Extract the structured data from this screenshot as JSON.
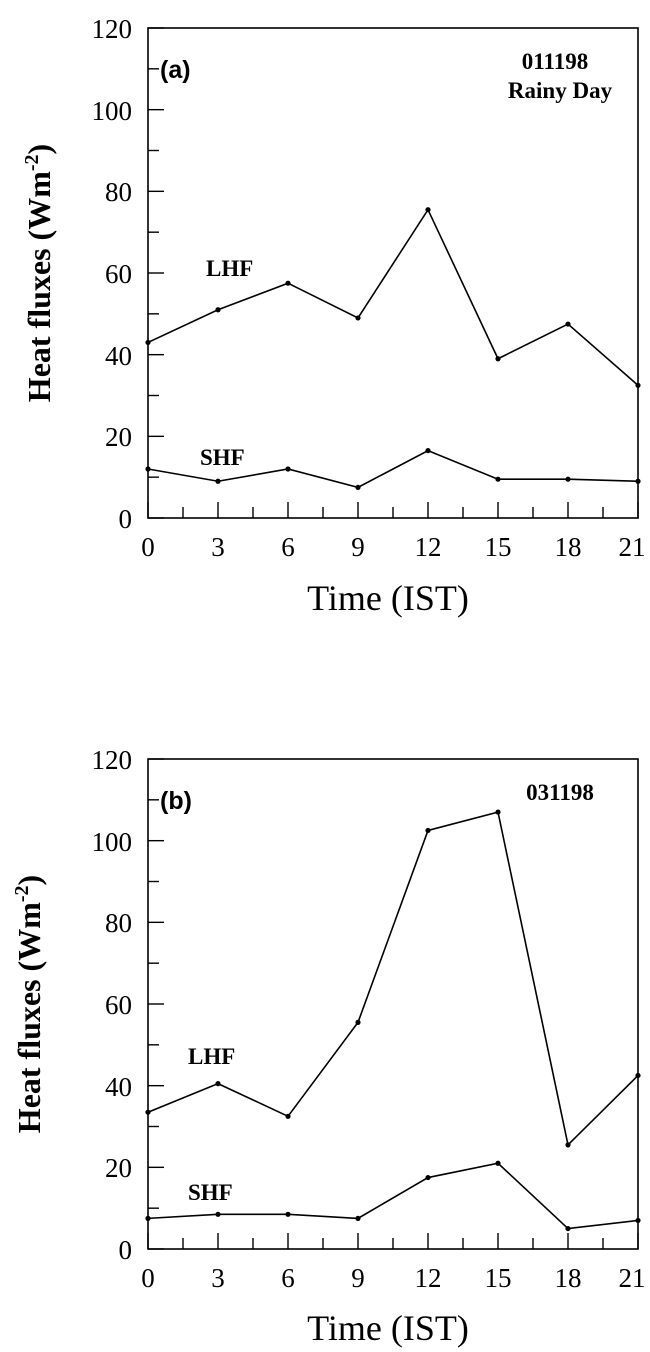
{
  "chart_data": [
    {
      "type": "line",
      "panel_label": "(a)",
      "annotation": [
        "011198",
        "Rainy Day"
      ],
      "xlabel": "Time (IST)",
      "ylabel": "Heat fluxes (Wm-2)",
      "ylabel_main": "Heat fluxes (Wm",
      "ylabel_exp": "-2",
      "ylabel_close": ")",
      "x": [
        0,
        3,
        6,
        9,
        12,
        15,
        18,
        21
      ],
      "xlim": [
        0,
        21
      ],
      "ylim": [
        0,
        120
      ],
      "xticks": [
        "0",
        "3",
        "6",
        "9",
        "12",
        "15",
        "18",
        "21"
      ],
      "yticks": [
        "0",
        "20",
        "40",
        "60",
        "80",
        "100",
        "120"
      ],
      "series": [
        {
          "name": "LHF",
          "values": [
            43,
            51,
            57.5,
            49,
            75.5,
            39,
            47.5,
            32.5
          ]
        },
        {
          "name": "SHF",
          "values": [
            12,
            9,
            12,
            7.5,
            16.5,
            9.5,
            9.5,
            9
          ]
        }
      ],
      "grid": false,
      "legend": "none"
    },
    {
      "type": "line",
      "panel_label": "(b)",
      "annotation": [
        "031198"
      ],
      "xlabel": "Time (IST)",
      "ylabel": "Heat fluxes (Wm-2)",
      "ylabel_main": "Heat fluxes (Wm",
      "ylabel_exp": "-2",
      "ylabel_close": ")",
      "x": [
        0,
        3,
        6,
        9,
        12,
        15,
        18,
        21
      ],
      "xlim": [
        0,
        21
      ],
      "ylim": [
        0,
        120
      ],
      "xticks": [
        "0",
        "3",
        "6",
        "9",
        "12",
        "15",
        "18",
        "21"
      ],
      "yticks": [
        "0",
        "20",
        "40",
        "60",
        "80",
        "100",
        "120"
      ],
      "series": [
        {
          "name": "LHF",
          "values": [
            33.5,
            40.5,
            32.5,
            55.5,
            102.5,
            107,
            25.5,
            42.5
          ]
        },
        {
          "name": "SHF",
          "values": [
            7.5,
            8.5,
            8.5,
            7.5,
            17.5,
            21,
            5,
            7
          ]
        }
      ],
      "grid": false,
      "legend": "none"
    }
  ]
}
